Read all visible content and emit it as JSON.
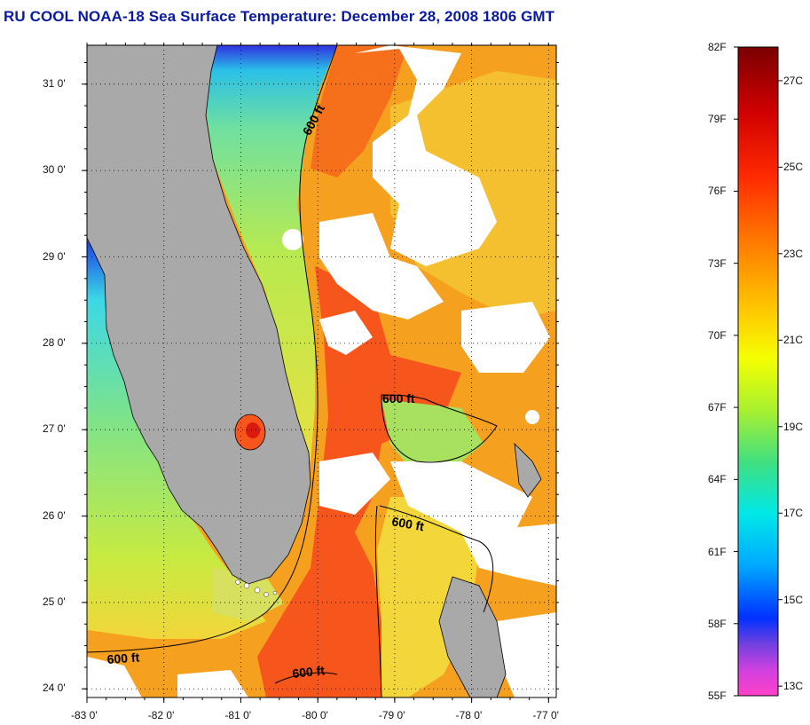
{
  "title": "RU COOL  NOAA-18  Sea Surface Temperature:  December 28, 2008 1806 GMT",
  "map": {
    "lon_range": [
      -83,
      -76.9
    ],
    "lat_range": [
      23.9,
      31.45
    ],
    "lon_ticks": [
      "-83 0'",
      "-82 0'",
      "-81 0'",
      "-80 0'",
      "-79 0'",
      "-78 0'",
      "-77 0'"
    ],
    "lat_ticks": [
      "31 0'",
      "30 0'",
      "29 0'",
      "28 0'",
      "27 0'",
      "26 0'",
      "25 0'",
      "24 0'"
    ],
    "grid": true,
    "colors": {
      "land": "#a9a9a9",
      "cloud": "#ffffff",
      "orange": "#ff8c20",
      "red_orange": "#f6551c",
      "yellow": "#f2d63a",
      "yellow_green": "#c8ea40",
      "green": "#7ee38a",
      "cyan": "#3cd8e6",
      "blue": "#1a40e8"
    },
    "contour_label": "600 ft",
    "contour_labels": [
      "600 ft",
      "600 ft",
      "600 ft",
      "600 ft",
      "600 ft"
    ]
  },
  "colorbar": {
    "f_labels": [
      "82F",
      "79F",
      "76F",
      "73F",
      "70F",
      "67F",
      "64F",
      "61F",
      "58F",
      "55F"
    ],
    "c_labels": [
      "27C",
      "25C",
      "23C",
      "21C",
      "19C",
      "17C",
      "15C",
      "13C"
    ],
    "f_range": [
      55,
      82
    ],
    "c_values": [
      27,
      25,
      23,
      21,
      19,
      17,
      15,
      13
    ]
  }
}
